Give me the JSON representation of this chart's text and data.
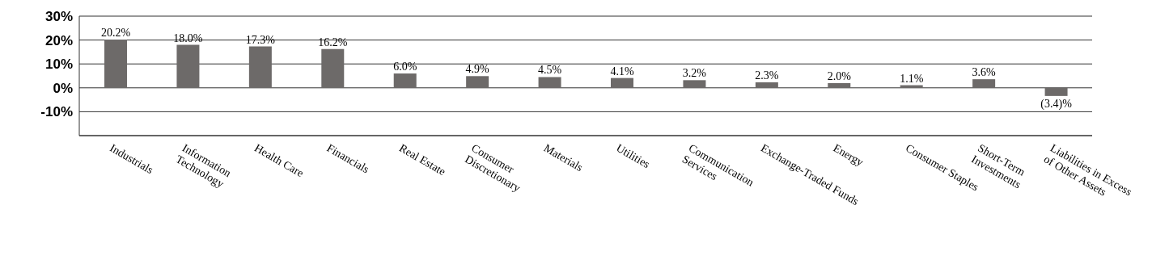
{
  "chart_data": {
    "type": "bar",
    "categories": [
      "Industrials",
      "Information\nTechnology",
      "Health Care",
      "Financials",
      "Real Estate",
      "Consumer\nDiscretionary",
      "Materials",
      "Utilities",
      "Communication\nServices",
      "Exchange-Traded Funds",
      "Energy",
      "Consumer Staples",
      "Short-Term\nInvestments",
      "Liabilities in Excess\nof Other Assets"
    ],
    "values": [
      20.2,
      18.0,
      17.3,
      16.2,
      6.0,
      4.9,
      4.5,
      4.1,
      3.2,
      2.3,
      2.0,
      1.1,
      3.6,
      -3.4
    ],
    "value_labels": [
      "20.2%",
      "18.0%",
      "17.3%",
      "16.2%",
      "6.0%",
      "4.9%",
      "4.5%",
      "4.1%",
      "3.2%",
      "2.3%",
      "2.0%",
      "1.1%",
      "3.6%",
      "(3.4)%"
    ],
    "color": "#6d6a69",
    "ylim": [
      -20,
      30
    ],
    "yticks": [
      {
        "value": 30,
        "label": "30%"
      },
      {
        "value": 20,
        "label": "20%"
      },
      {
        "value": 10,
        "label": "10%"
      },
      {
        "value": 0,
        "label": "0%"
      },
      {
        "value": -10,
        "label": "-10%"
      }
    ],
    "grid": "y"
  }
}
